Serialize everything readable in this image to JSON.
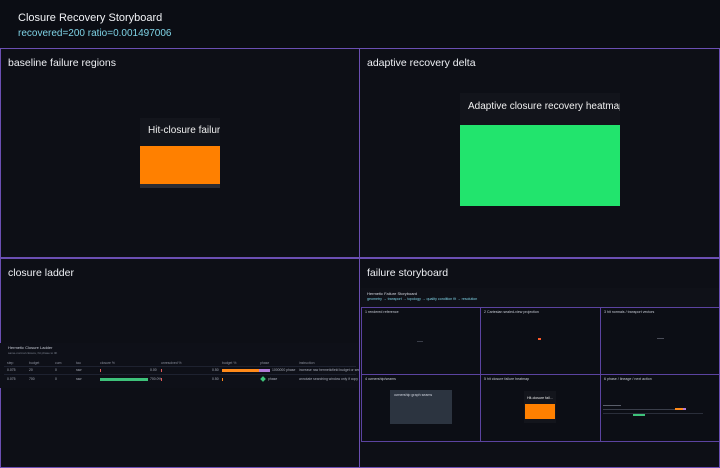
{
  "header": {
    "title": "Closure Recovery Storyboard",
    "subtitle": "recovered=200 ratio=0.001497006"
  },
  "panels": {
    "baseline": {
      "title": "baseline failure regions",
      "tile_label": "Hit-closure failure heatmap"
    },
    "adaptive": {
      "title": "adaptive recovery delta",
      "tile_label": "Adaptive closure recovery heatmap"
    },
    "ladder": {
      "title": "closure ladder",
      "table_title": "Hermetic Closure Ladder",
      "table_subtitle": "same-normal closure, hit phase to lift",
      "columns": [
        "step",
        "budget",
        "cum",
        "tau",
        "closure %",
        "unresolved %",
        "budget %",
        "phase",
        "instruction"
      ],
      "rows": [
        {
          "step": "0.075",
          "budget": "20",
          "cum": "0",
          "tau": "raw",
          "closure": "",
          "unresolved": "0.00",
          "budget_pct": "0.50",
          "phase": "1000000 phase",
          "instruction": "increase raw hermeticfield budget or seed"
        },
        {
          "step": "0.075",
          "budget": "700",
          "cum": "0",
          "tau": "raw",
          "closure": "700.0%",
          "unresolved": "0.00",
          "budget_pct": "0.50",
          "phase": "phase",
          "instruction": "annotate searching window only if copy"
        }
      ]
    },
    "storyboard": {
      "title": "failure storyboard",
      "inner_title": "Hermetic Failure Storyboard",
      "inner_subtitle": "geometry → transport → topology → quality condition fit → resolution",
      "cells": [
        {
          "label": "1 rendered reference"
        },
        {
          "label": "2 Cartesian sealed-view projection"
        },
        {
          "label": "3 hit normals / transport vectors"
        },
        {
          "label": "4 ownership/seams",
          "box_label": "ownership graph seams"
        },
        {
          "label": "5 hit closure failure heatmap",
          "box_label": "Hit-closure fail..."
        },
        {
          "label": "6 phase / lineage / next action"
        }
      ]
    }
  },
  "colors": {
    "accent": "#6b4fb3",
    "orange": "#ff8000",
    "green": "#22e46d",
    "cyan": "#7fd3e6"
  }
}
